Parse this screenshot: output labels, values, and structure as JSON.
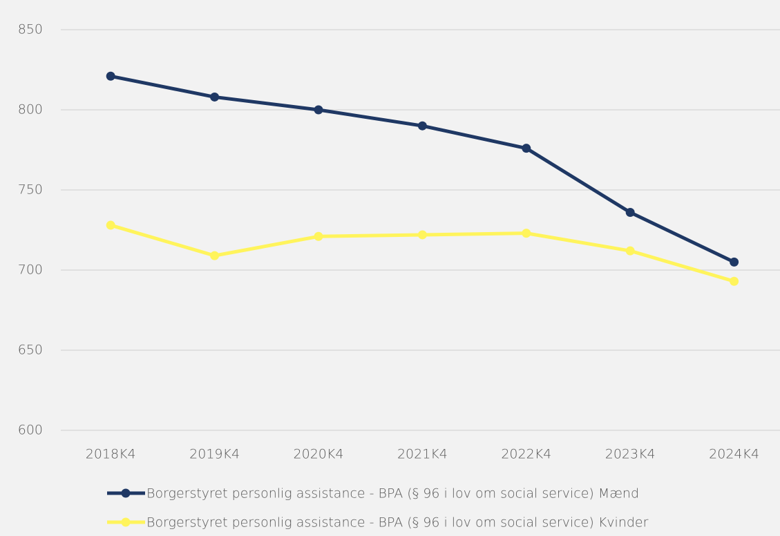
{
  "chart_data": {
    "type": "line",
    "categories": [
      "2018K4",
      "2019K4",
      "2020K4",
      "2021K4",
      "2022K4",
      "2023K4",
      "2024K4"
    ],
    "series": [
      {
        "name": "Borgerstyret personlig assistance - BPA (§ 96 i lov om social service) Mænd",
        "color": "#1f3864",
        "values": [
          821,
          808,
          800,
          790,
          776,
          736,
          705
        ]
      },
      {
        "name": "Borgerstyret personlig assistance - BPA (§ 96 i lov om social service) Kvinder",
        "color": "#fff45c",
        "values": [
          728,
          709,
          721,
          722,
          723,
          712,
          693
        ]
      }
    ],
    "ylim": [
      600,
      850
    ],
    "yticks": [
      600,
      650,
      700,
      750,
      800,
      850
    ],
    "grid": true,
    "legend": "bottom"
  }
}
